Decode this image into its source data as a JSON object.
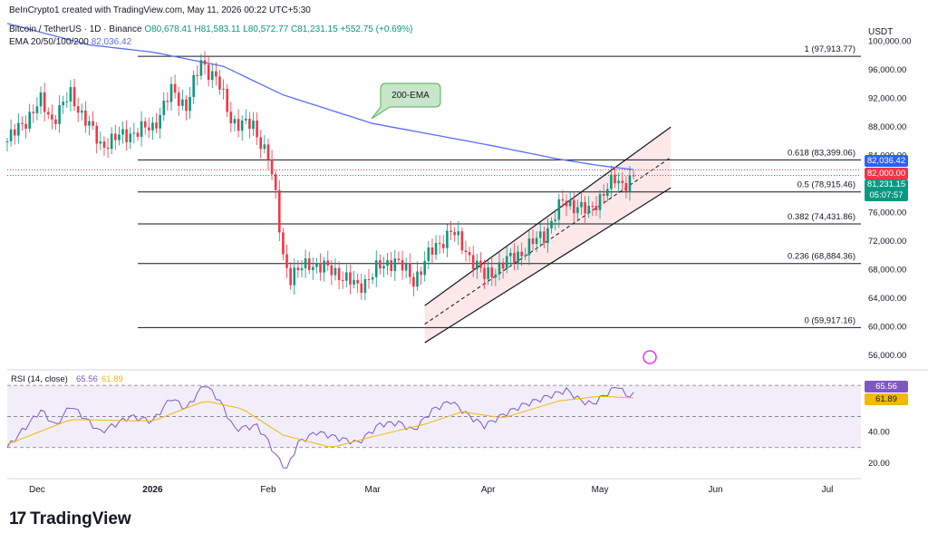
{
  "header": {
    "author_line": "BeInCrypto1 created with TradingView.com, May 11, 2026 00:22 UTC+5:30",
    "symbol": "Bitcoin / TetherUS · 1D · Binance",
    "ohlc": "O80,678.41 H81,583.11 L80,572.77 C81,231.15 +552.75 (+0.69%)",
    "ema_label": "EMA 20/50/100/200",
    "ema_value": "82,036.42",
    "currency": "USDT"
  },
  "brand": {
    "logo": "17",
    "name": "TradingView"
  },
  "colors": {
    "up": "#089981",
    "down": "#f23645",
    "ema": "#5b6df7",
    "rsi": "#7e57c2",
    "rsi_ma": "#f0b90b",
    "channel_fill": "#fde2e4",
    "annotation_fill": "#c8e6c9"
  },
  "annotation": {
    "label": "200-EMA"
  },
  "price_tags": {
    "ema": "82,036.42",
    "level": "82,000.00",
    "last": "81,231.15",
    "countdown": "05:07:57"
  },
  "rsi": {
    "title": "RSI (14, close)",
    "value": "65.56",
    "ma_value": "61.89"
  },
  "chart_data": [
    {
      "type": "candlestick",
      "title": "Bitcoin / TetherUS · 1D · Binance",
      "ylim": [
        54000,
        103000
      ],
      "y_ticks": [
        56000,
        60000,
        64000,
        68000,
        72000,
        76000,
        80000,
        84000,
        88000,
        92000,
        96000,
        100000
      ],
      "y_tick_labels": [
        "56,000.00",
        "60,000.00",
        "64,000.00",
        "68,000.00",
        "72,000.00",
        "76,000.00",
        "80,000.00",
        "84,000.00",
        "88,000.00",
        "92,000.00",
        "96,000.00",
        "100,000.00"
      ],
      "x_range": [
        "2025-11-23",
        "2026-07-10"
      ],
      "x_ticks": [
        "2025-12-01",
        "2026-01-01",
        "2026-02-01",
        "2026-03-01",
        "2026-04-01",
        "2026-05-01",
        "2026-06-01",
        "2026-07-01"
      ],
      "x_tick_labels": [
        "Dec",
        "2026",
        "Feb",
        "Mar",
        "Apr",
        "May",
        "Jun",
        "Jul"
      ],
      "price_path_anchors": [
        [
          "2025-11-23",
          86000
        ],
        [
          "2025-12-02",
          91500
        ],
        [
          "2025-12-05",
          89000
        ],
        [
          "2025-12-10",
          92500
        ],
        [
          "2025-12-18",
          85500
        ],
        [
          "2025-12-25",
          87000
        ],
        [
          "2026-01-01",
          88000
        ],
        [
          "2026-01-06",
          93000
        ],
        [
          "2026-01-10",
          91000
        ],
        [
          "2026-01-14",
          97000
        ],
        [
          "2026-01-18",
          95000
        ],
        [
          "2026-01-22",
          89000
        ],
        [
          "2026-01-28",
          88000
        ],
        [
          "2026-02-01",
          84000
        ],
        [
          "2026-02-03",
          78000
        ],
        [
          "2026-02-05",
          70000
        ],
        [
          "2026-02-07",
          67000
        ],
        [
          "2026-02-12",
          69000
        ],
        [
          "2026-02-20",
          67500
        ],
        [
          "2026-02-25",
          65500
        ],
        [
          "2026-03-02",
          68000
        ],
        [
          "2026-03-07",
          69500
        ],
        [
          "2026-03-12",
          66500
        ],
        [
          "2026-03-16",
          70000
        ],
        [
          "2026-03-22",
          73500
        ],
        [
          "2026-03-27",
          70000
        ],
        [
          "2026-03-31",
          67000
        ],
        [
          "2026-04-04",
          68500
        ],
        [
          "2026-04-10",
          70500
        ],
        [
          "2026-04-16",
          73000
        ],
        [
          "2026-04-21",
          77500
        ],
        [
          "2026-04-25",
          77000
        ],
        [
          "2026-04-28",
          76000
        ],
        [
          "2026-05-02",
          79000
        ],
        [
          "2026-05-05",
          80500
        ],
        [
          "2026-05-07",
          80000
        ],
        [
          "2026-05-10",
          81231
        ]
      ],
      "ema200_path": [
        [
          "2025-11-23",
          102500
        ],
        [
          "2025-12-15",
          99500
        ],
        [
          "2026-01-01",
          98500
        ],
        [
          "2026-01-20",
          96500
        ],
        [
          "2026-02-05",
          92500
        ],
        [
          "2026-03-01",
          88500
        ],
        [
          "2026-04-01",
          85500
        ],
        [
          "2026-04-20",
          83500
        ],
        [
          "2026-05-01",
          82600
        ],
        [
          "2026-05-10",
          82036
        ]
      ],
      "horizontal_levels": [
        {
          "label": "1 (97,913.77)",
          "price": 97913.77
        },
        {
          "label": "0.618 (83,399.06)",
          "price": 83399.06
        },
        {
          "label": "0.5 (78,915.46)",
          "price": 78915.46
        },
        {
          "label": "0.382 (74,431.86)",
          "price": 74431.86
        },
        {
          "label": "0.236 (68,884.36)",
          "price": 68884.36
        },
        {
          "label": "0 (59,917.16)",
          "price": 59917.16
        }
      ],
      "dotted_levels": [
        82000,
        81231.15
      ],
      "channel": {
        "start": "2026-03-15",
        "end": "2026-05-20",
        "lower": [
          57800,
          79500
        ],
        "upper": [
          63000,
          88000
        ]
      }
    },
    {
      "type": "line",
      "title": "RSI (14, close)",
      "ylim": [
        10,
        80
      ],
      "y_ticks": [
        20,
        40,
        60
      ],
      "y_tick_labels": [
        "20.00",
        "40.00",
        "60.00"
      ],
      "bands": [
        30,
        50,
        70
      ],
      "rsi_anchors": [
        [
          "2025-11-23",
          30
        ],
        [
          "2025-12-02",
          54
        ],
        [
          "2025-12-06",
          44
        ],
        [
          "2025-12-10",
          57
        ],
        [
          "2025-12-18",
          40
        ],
        [
          "2025-12-26",
          50
        ],
        [
          "2026-01-01",
          47
        ],
        [
          "2026-01-06",
          62
        ],
        [
          "2026-01-10",
          55
        ],
        [
          "2026-01-15",
          71
        ],
        [
          "2026-01-19",
          60
        ],
        [
          "2026-01-23",
          42
        ],
        [
          "2026-01-29",
          44
        ],
        [
          "2026-02-01",
          34
        ],
        [
          "2026-02-03",
          25
        ],
        [
          "2026-02-06",
          16
        ],
        [
          "2026-02-09",
          33
        ],
        [
          "2026-02-14",
          40
        ],
        [
          "2026-02-20",
          36
        ],
        [
          "2026-02-25",
          33
        ],
        [
          "2026-03-03",
          45
        ],
        [
          "2026-03-08",
          46
        ],
        [
          "2026-03-12",
          41
        ],
        [
          "2026-03-17",
          54
        ],
        [
          "2026-03-22",
          60
        ],
        [
          "2026-03-27",
          50
        ],
        [
          "2026-03-31",
          44
        ],
        [
          "2026-04-05",
          51
        ],
        [
          "2026-04-10",
          57
        ],
        [
          "2026-04-16",
          62
        ],
        [
          "2026-04-22",
          67
        ],
        [
          "2026-04-26",
          60
        ],
        [
          "2026-04-29",
          58
        ],
        [
          "2026-05-03",
          65
        ],
        [
          "2026-05-06",
          70
        ],
        [
          "2026-05-08",
          63
        ],
        [
          "2026-05-10",
          65.56
        ]
      ],
      "ma_anchors": [
        [
          "2025-11-23",
          32
        ],
        [
          "2025-12-10",
          48
        ],
        [
          "2026-01-01",
          47
        ],
        [
          "2026-01-15",
          60
        ],
        [
          "2026-01-25",
          55
        ],
        [
          "2026-02-05",
          38
        ],
        [
          "2026-02-18",
          30
        ],
        [
          "2026-03-01",
          37
        ],
        [
          "2026-03-15",
          45
        ],
        [
          "2026-03-25",
          53
        ],
        [
          "2026-04-05",
          49
        ],
        [
          "2026-04-20",
          60
        ],
        [
          "2026-05-01",
          63
        ],
        [
          "2026-05-10",
          61.89
        ]
      ]
    }
  ]
}
